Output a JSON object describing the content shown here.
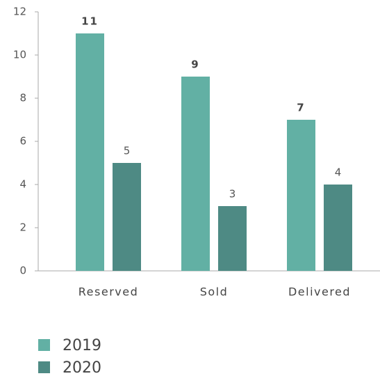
{
  "chart_data": {
    "type": "bar",
    "categories": [
      "Reserved",
      "Sold",
      "Delivered"
    ],
    "series": [
      {
        "name": "2019",
        "color": "#62b0a4",
        "values": [
          11,
          9,
          7
        ]
      },
      {
        "name": "2020",
        "color": "#4e8a84",
        "values": [
          5,
          3,
          4
        ]
      }
    ],
    "ylim": [
      0,
      12
    ],
    "yticks": [
      0,
      2,
      4,
      6,
      8,
      10,
      12
    ],
    "grid": false
  }
}
